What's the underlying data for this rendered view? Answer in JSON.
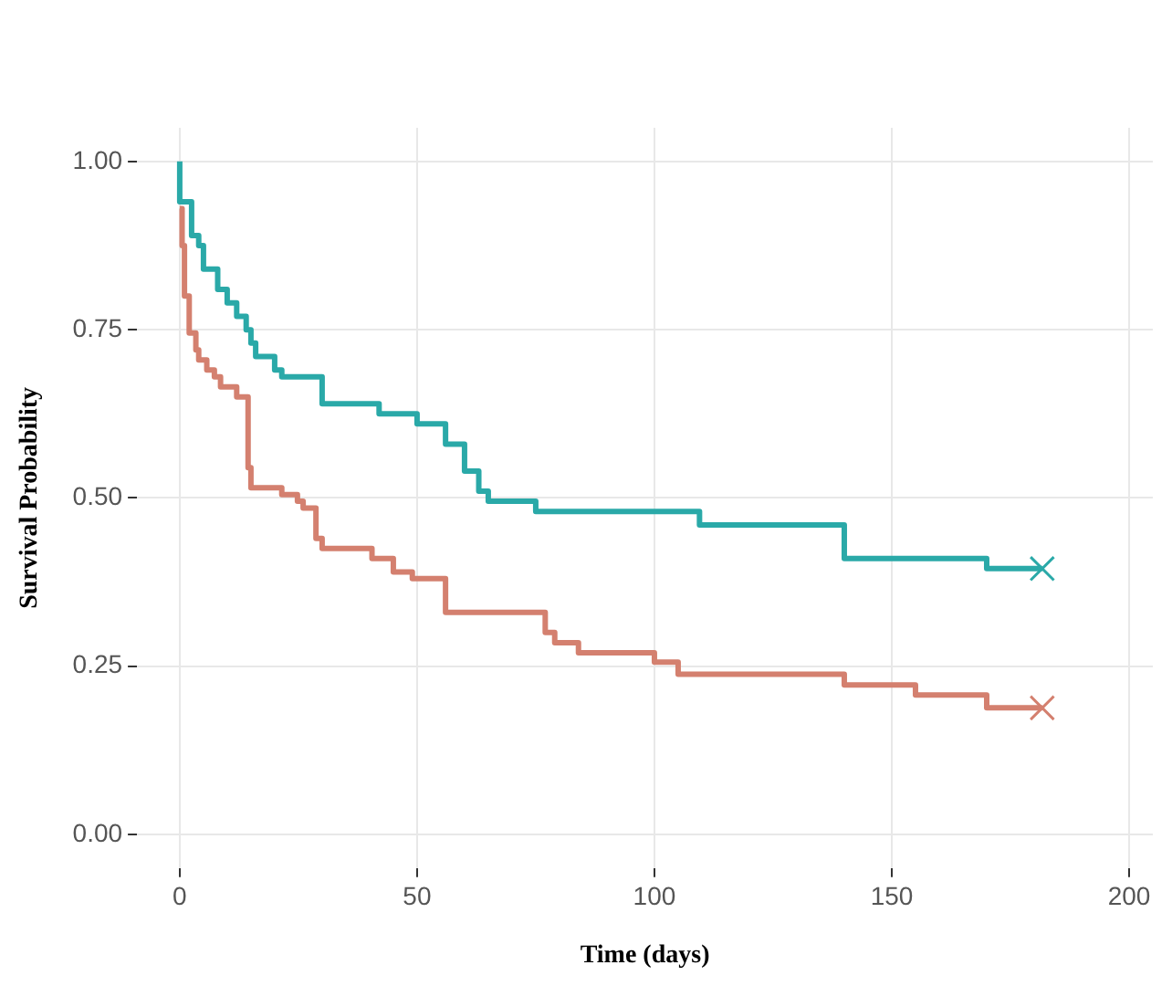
{
  "chart_data": {
    "type": "step",
    "xlabel": "Time (days)",
    "ylabel": "Survival Probability",
    "xlim": [
      -9,
      205
    ],
    "xticks": [
      0,
      50,
      100,
      150,
      200
    ],
    "ylim": [
      -0.05,
      1.05
    ],
    "yticks": [
      {
        "value": 0,
        "label": "0.00"
      },
      {
        "value": 0.25,
        "label": "0.25"
      },
      {
        "value": 0.5,
        "label": "0.50"
      },
      {
        "value": 0.75,
        "label": "0.75"
      },
      {
        "value": 1,
        "label": "1.00"
      }
    ],
    "grid": true,
    "legend": false,
    "line_style": "solid",
    "series": [
      {
        "color": "#2aa9a8",
        "x": [
          0,
          0,
          2.5,
          4,
          5,
          8,
          10,
          12,
          14,
          15,
          16,
          20,
          21.5,
          30,
          42,
          50,
          56,
          60,
          63,
          65,
          75,
          109.5,
          140,
          170,
          181.7
        ],
        "values": [
          1.0,
          0.94,
          0.89,
          0.875,
          0.84,
          0.81,
          0.79,
          0.77,
          0.75,
          0.73,
          0.71,
          0.69,
          0.68,
          0.64,
          0.625,
          0.61,
          0.58,
          0.54,
          0.51,
          0.495,
          0.48,
          0.46,
          0.41,
          0.395,
          0.395
        ]
      },
      {
        "color": "#d4806f",
        "x": [
          0,
          0.5,
          1,
          2,
          3.4,
          4,
          5.7,
          7.3,
          8.6,
          12,
          14.4,
          14.4,
          15,
          21.5,
          24.8,
          26,
          28.7,
          30,
          40.5,
          45,
          49,
          56,
          77,
          79,
          84,
          100,
          105,
          140,
          155,
          170,
          181.7
        ],
        "values": [
          0.93,
          0.875,
          0.8,
          0.745,
          0.72,
          0.705,
          0.69,
          0.68,
          0.665,
          0.65,
          0.64,
          0.545,
          0.515,
          0.505,
          0.495,
          0.485,
          0.44,
          0.425,
          0.41,
          0.39,
          0.38,
          0.33,
          0.3,
          0.285,
          0.27,
          0.256,
          0.238,
          0.222,
          0.207,
          0.188,
          0.188
        ]
      },
      {
        "type": "scatter",
        "color": "#2aa9a8",
        "marker": "cross",
        "x": [
          181.7
        ],
        "values": [
          0.395
        ]
      },
      {
        "type": "scatter",
        "color": "#d4806f",
        "marker": "cross",
        "x": [
          181.7
        ],
        "values": [
          0.188
        ]
      }
    ]
  }
}
